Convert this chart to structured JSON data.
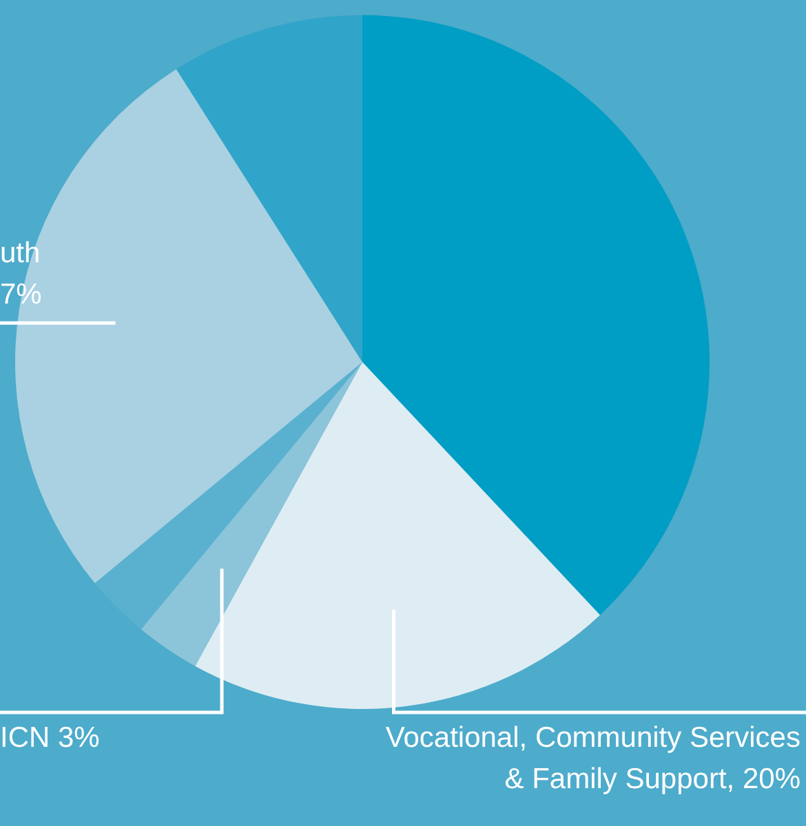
{
  "chart_data": {
    "type": "pie",
    "categories": [
      null,
      null,
      null,
      null,
      null,
      null
    ],
    "values": [
      38,
      20,
      3,
      3,
      27,
      9
    ],
    "colors": [
      "#009dc4",
      "#deedf3",
      "#8cc4da",
      "#5ab1cf",
      "#a9d1e2",
      "#31a5c9"
    ],
    "value_labels": [
      null,
      "Vocational, Community Services\n& Family Support, 20%",
      "ICN 3%",
      null,
      "uth\n7%",
      null
    ],
    "legend": false
  }
}
